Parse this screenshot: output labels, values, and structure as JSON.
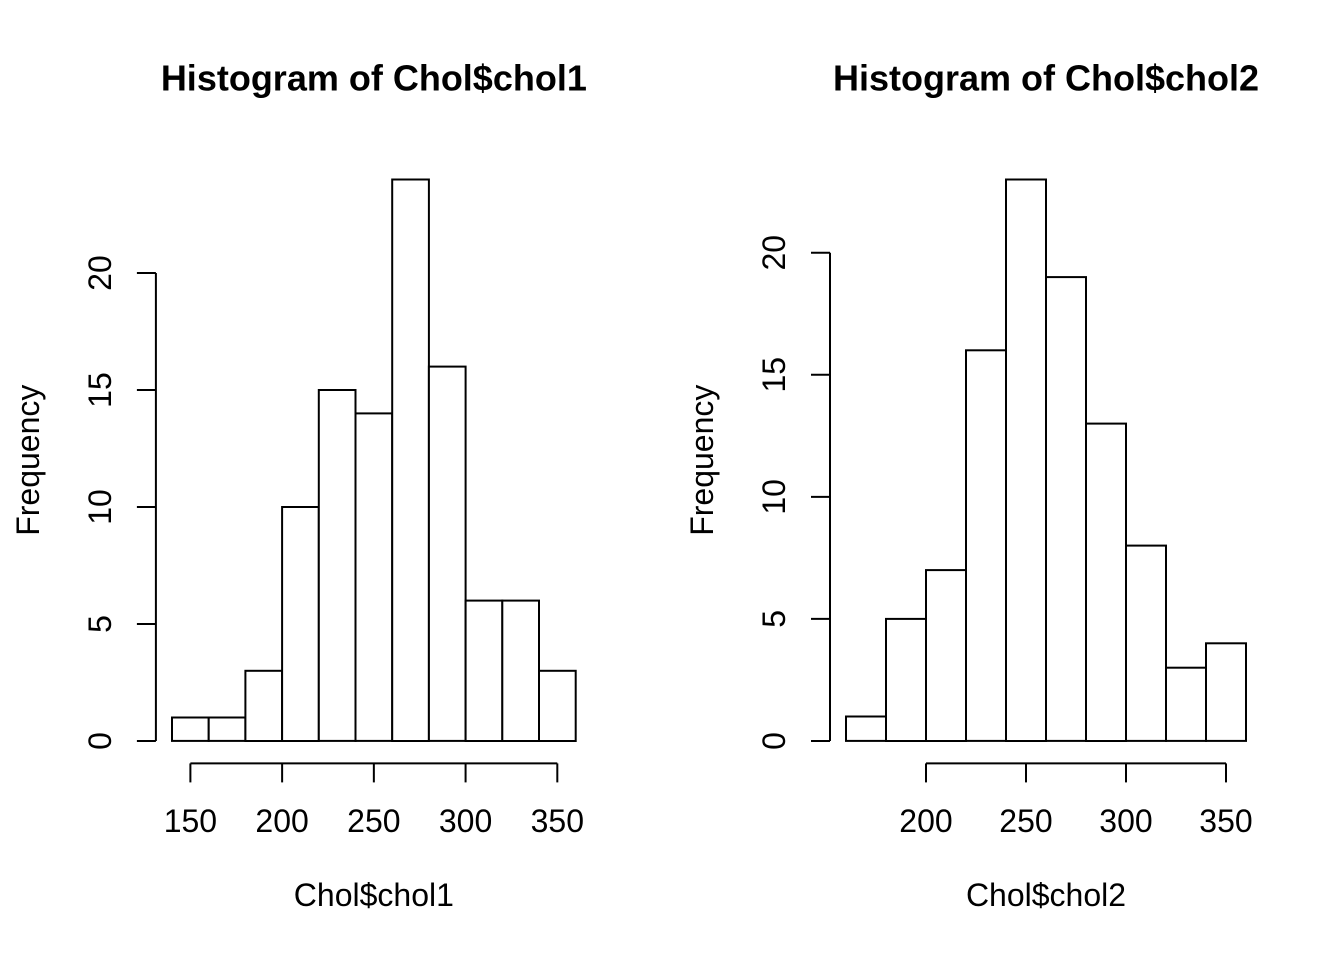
{
  "figure": {
    "background": "#ffffff",
    "stroke_color": "#000000",
    "bar_fill": "#ffffff",
    "grid": false,
    "legend": "none"
  },
  "chart_data": [
    {
      "type": "bar",
      "subtype": "histogram",
      "title": "Histogram of Chol$chol1",
      "xlabel": "Chol$chol1",
      "ylabel": "Frequency",
      "bin_edges": [
        140,
        160,
        180,
        200,
        220,
        240,
        260,
        280,
        300,
        320,
        340,
        360
      ],
      "counts": [
        1,
        1,
        3,
        10,
        15,
        14,
        24,
        16,
        6,
        6,
        3
      ],
      "x_ticks": [
        150,
        200,
        250,
        300,
        350
      ],
      "y_ticks": [
        0,
        5,
        10,
        15,
        20
      ],
      "xlim": [
        140,
        360
      ],
      "ylim": [
        0,
        24
      ],
      "grid": false,
      "legend": "none"
    },
    {
      "type": "bar",
      "subtype": "histogram",
      "title": "Histogram of Chol$chol2",
      "xlabel": "Chol$chol2",
      "ylabel": "Frequency",
      "bin_edges": [
        160,
        180,
        200,
        220,
        240,
        260,
        280,
        300,
        320,
        340,
        360
      ],
      "counts": [
        1,
        5,
        7,
        16,
        23,
        19,
        13,
        8,
        3,
        4
      ],
      "x_ticks": [
        200,
        250,
        300,
        350
      ],
      "y_ticks": [
        0,
        5,
        10,
        15,
        20
      ],
      "xlim": [
        160,
        360
      ],
      "ylim": [
        0,
        23
      ],
      "grid": false,
      "legend": "none"
    }
  ]
}
